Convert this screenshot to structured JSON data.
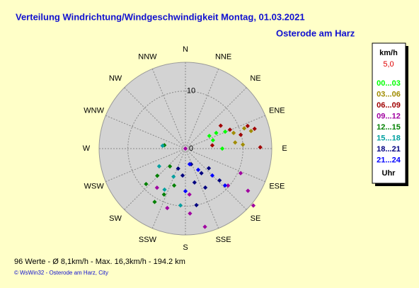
{
  "chart_data": {
    "type": "polar-scatter",
    "title": "Verteilung Windrichtung/Windgeschwindigkeit  Montag, 01.03.2021",
    "subtitle": "Osterode am Harz",
    "directions": [
      "N",
      "NNE",
      "NE",
      "ENE",
      "E",
      "ESE",
      "SE",
      "SSE",
      "S",
      "SSW",
      "SW",
      "WSW",
      "W",
      "WNW",
      "NW",
      "NNW"
    ],
    "rlim": [
      0,
      15
    ],
    "rticks": [
      0,
      10
    ],
    "grid": true,
    "legend_title": "km/h",
    "legend_value": "5,0",
    "legend_footer": "Uhr",
    "series": [
      {
        "name": "00...03",
        "color": "#00ff00",
        "values": [
          [
            62,
            4.7
          ],
          [
            73,
            5.0
          ],
          [
            63,
            6.0
          ],
          [
            67,
            7.5
          ],
          [
            90,
            6.4
          ]
        ]
      },
      {
        "name": "03...06",
        "color": "#a08c00",
        "values": [
          [
            72,
            8.8
          ],
          [
            71,
            10.8
          ],
          [
            86,
            10.0
          ],
          [
            83,
            8.7
          ],
          [
            75,
            11.8
          ]
        ]
      },
      {
        "name": "06...09",
        "color": "#a00000",
        "values": [
          [
            57,
            7.3
          ],
          [
            67,
            8.4
          ],
          [
            70,
            11.5
          ],
          [
            74,
            12.5
          ],
          [
            89,
            13.0
          ],
          [
            76,
            9.9
          ],
          [
            83,
            4.7
          ]
        ]
      },
      {
        "name": "09...12",
        "color": "#a000a0",
        "values": [
          [
            0,
            0
          ],
          [
            114,
            10.5
          ],
          [
            124,
            13.1
          ],
          [
            130,
            15.4
          ],
          [
            166,
            14.0
          ],
          [
            176,
            11.3
          ],
          [
            216,
            8.4
          ],
          [
            197,
            10.8
          ],
          [
            131,
            9.8
          ],
          [
            175,
            8.0
          ]
        ]
      },
      {
        "name": "12...15",
        "color": "#008000",
        "values": [
          [
            279,
            3.7
          ],
          [
            228,
            9.2
          ],
          [
            210,
            10.7
          ],
          [
            205,
            8.8
          ],
          [
            221,
            4.1
          ],
          [
            226,
            6.8
          ],
          [
            197,
            6.7
          ]
        ]
      },
      {
        "name": "15...18",
        "color": "#00a0a0",
        "values": [
          [
            277,
            4.0
          ],
          [
            236,
            5.5
          ],
          [
            203,
            5.3
          ],
          [
            207,
            8.0
          ],
          [
            185,
            9.9
          ]
        ]
      },
      {
        "name": "18...21",
        "color": "#000080",
        "values": [
          [
            160,
            2.9
          ],
          [
            147,
            5.1
          ],
          [
            130,
            5.3
          ],
          [
            165,
            6.1
          ],
          [
            153,
            7.6
          ],
          [
            186,
            4.7
          ],
          [
            133,
            8.1
          ],
          [
            169,
            10.0
          ],
          [
            200,
            3.7
          ]
        ]
      },
      {
        "name": "21...24",
        "color": "#0000ff",
        "values": [
          [
            165,
            2.8
          ],
          [
            135,
            6.6
          ],
          [
            149,
            4.3
          ],
          [
            180,
            7.4
          ],
          [
            133,
            9.4
          ]
        ]
      }
    ],
    "footer": "96 Werte  -  Ø 8,1km/h  -  Max. 16,3km/h  -  194.2 km",
    "credit": "© WsWin32  -  Osterode am Harz, City"
  }
}
